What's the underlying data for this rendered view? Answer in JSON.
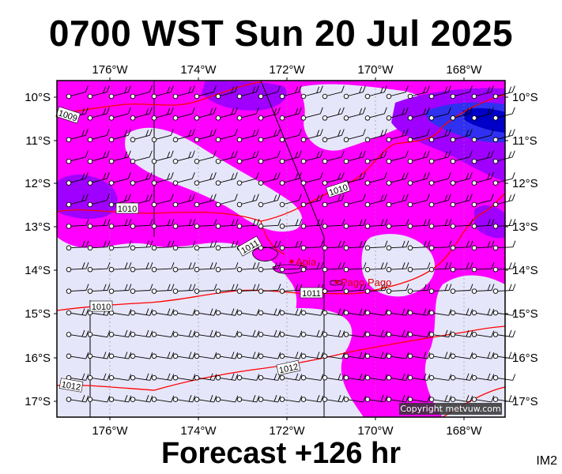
{
  "title": "0700 WST Sun 20 Jul 2025",
  "subtitle": "Forecast +126 hr",
  "corner_tag": "IM2",
  "copyright": "Copyright metvuw.com",
  "map": {
    "lon_labels": [
      "176°W",
      "174°W",
      "172°W",
      "170°W",
      "168°W"
    ],
    "lat_labels": [
      "10°S",
      "11°S",
      "12°S",
      "13°S",
      "14°S",
      "15°S",
      "16°S",
      "17°S"
    ],
    "places": [
      {
        "name": "Apia"
      },
      {
        "name": "Pago Pago"
      }
    ],
    "isobar_labels": [
      "1009",
      "1010",
      "1010",
      "1011",
      "1010",
      "1011",
      "1012",
      "1012"
    ],
    "colors": {
      "light": "#e6e6fa",
      "magenta": "#ff00ff",
      "violet": "#a000ff",
      "blue": "#3030f0",
      "deep_blue": "#0000c8",
      "isobar": "#ff0000",
      "place": "#d00000"
    },
    "legend_icons": [
      "wind-barb-icon",
      "station-circle-icon"
    ]
  }
}
